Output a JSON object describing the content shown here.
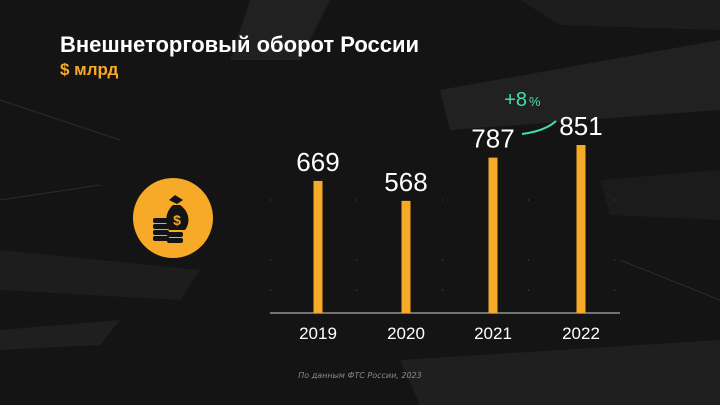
{
  "header": {
    "title": "Внешнеторговый оборот России",
    "unit": "$ млрд"
  },
  "annotation": {
    "growth_label": "+8",
    "growth_unit": "%"
  },
  "source": "По данным ФТС России, 2023",
  "colors": {
    "background": "#141414",
    "accent": "#f7a928",
    "growth": "#3fe0b0",
    "text": "#ffffff"
  },
  "icon": "money-bag-coins-icon",
  "chart_data": {
    "type": "bar",
    "categories": [
      "2019",
      "2020",
      "2021",
      "2022"
    ],
    "values": [
      669,
      568,
      787,
      851
    ],
    "ylim": [
      0,
      851
    ],
    "grid": false
  }
}
